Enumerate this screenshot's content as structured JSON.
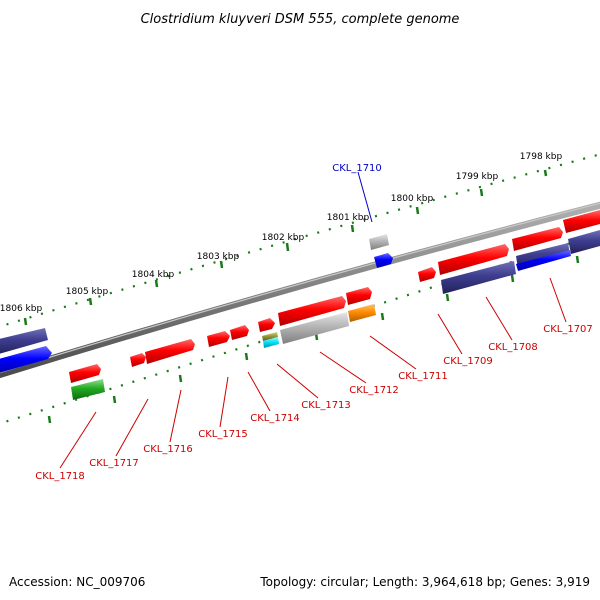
{
  "title": "Clostridium kluyveri DSM 555, complete genome",
  "footer": {
    "accession": "Accession: NC_009706",
    "topology": "Topology: circular; Length: 3,964,618 bp; Genes: 3,919"
  },
  "colors": {
    "backbone": "#808080",
    "tick": "#1a7a1a",
    "label_red": "#cc0000",
    "label_blue": "#0000cc",
    "red": "#ff0000",
    "navy": "#3d3d8f",
    "blue": "#0000ff",
    "grey": "#b5b5b5",
    "orange": "#ff8c00",
    "green": "#22aa22",
    "cyan": "#00e5ff",
    "olive": "#9a9a3a"
  },
  "kbp_labels": [
    "1798 kbp",
    "1799 kbp",
    "1800 kbp",
    "1801 kbp",
    "1802 kbp",
    "1803 kbp",
    "1804 kbp",
    "1805 kbp",
    "1806 kbp"
  ],
  "gene_labels": [
    {
      "text": "CKL_1710",
      "color": "blue"
    },
    {
      "text": "CKL_1707",
      "color": "red"
    },
    {
      "text": "CKL_1708",
      "color": "red"
    },
    {
      "text": "CKL_1709",
      "color": "red"
    },
    {
      "text": "CKL_1711",
      "color": "red"
    },
    {
      "text": "CKL_1712",
      "color": "red"
    },
    {
      "text": "CKL_1713",
      "color": "red"
    },
    {
      "text": "CKL_1714",
      "color": "red"
    },
    {
      "text": "CKL_1715",
      "color": "red"
    },
    {
      "text": "CKL_1716",
      "color": "red"
    },
    {
      "text": "CKL_1717",
      "color": "red"
    },
    {
      "text": "CKL_1718",
      "color": "red"
    }
  ]
}
